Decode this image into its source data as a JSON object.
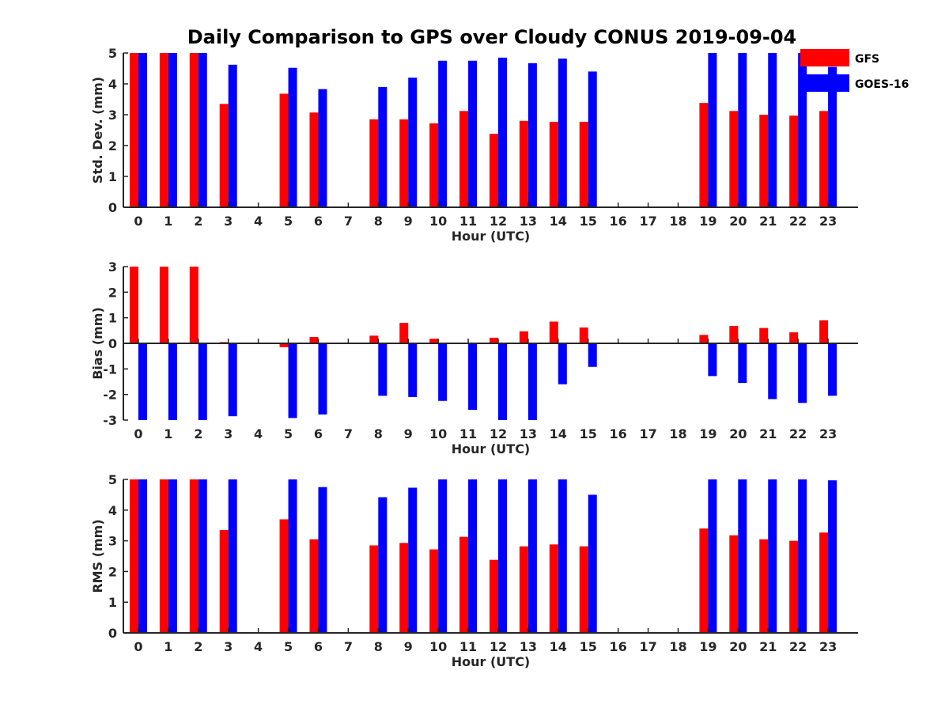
{
  "title": "Daily Comparison to GPS over Cloudy CONUS 2019-09-04",
  "legend": {
    "placement": "top-right",
    "items": [
      {
        "label": "GFS",
        "color": "#ff0000"
      },
      {
        "label": "GOES-16",
        "color": "#0000ff"
      }
    ]
  },
  "chart_data": [
    {
      "type": "bar",
      "xlabel": "Hour (UTC)",
      "ylabel": "Std. Dev. (mm)",
      "ylim": [
        0,
        5
      ],
      "yticks": [
        0,
        1,
        2,
        3,
        4,
        5
      ],
      "categories": [
        "0",
        "1",
        "2",
        "3",
        "4",
        "5",
        "6",
        "7",
        "8",
        "9",
        "10",
        "11",
        "12",
        "13",
        "14",
        "15",
        "16",
        "17",
        "18",
        "19",
        "20",
        "21",
        "22",
        "23"
      ],
      "series": [
        {
          "name": "GFS",
          "color": "#ff0000",
          "values": [
            5,
            5,
            5,
            3.35,
            null,
            3.68,
            3.07,
            null,
            2.85,
            2.85,
            2.72,
            3.12,
            2.38,
            2.8,
            2.77,
            2.77,
            null,
            null,
            null,
            3.38,
            3.12,
            3.0,
            2.97,
            3.12
          ]
        },
        {
          "name": "GOES-16",
          "color": "#0000ff",
          "values": [
            5,
            5,
            5,
            4.62,
            null,
            4.52,
            3.83,
            null,
            3.9,
            4.2,
            4.75,
            4.75,
            4.85,
            4.67,
            4.82,
            4.4,
            null,
            null,
            null,
            5,
            5,
            5,
            5,
            4.55
          ]
        }
      ]
    },
    {
      "type": "bar",
      "xlabel": "Hour (UTC)",
      "ylabel": "Bias (mm)",
      "ylim": [
        -3,
        3
      ],
      "yticks": [
        -3,
        -2,
        -1,
        0,
        1,
        2,
        3
      ],
      "categories": [
        "0",
        "1",
        "2",
        "3",
        "4",
        "5",
        "6",
        "7",
        "8",
        "9",
        "10",
        "11",
        "12",
        "13",
        "14",
        "15",
        "16",
        "17",
        "18",
        "19",
        "20",
        "21",
        "22",
        "23"
      ],
      "series": [
        {
          "name": "GFS",
          "color": "#ff0000",
          "values": [
            3,
            3,
            3,
            0.05,
            null,
            -0.15,
            0.25,
            null,
            0.3,
            0.8,
            0.18,
            null,
            0.22,
            0.47,
            0.85,
            0.62,
            null,
            null,
            null,
            0.33,
            0.68,
            0.6,
            0.43,
            0.9
          ]
        },
        {
          "name": "GOES-16",
          "color": "#0000ff",
          "values": [
            -3,
            -3,
            -3,
            -2.85,
            null,
            -2.92,
            -2.78,
            null,
            -2.05,
            -2.1,
            -2.25,
            -2.6,
            -3,
            -3,
            -1.6,
            -0.92,
            null,
            null,
            null,
            -1.28,
            -1.55,
            -2.18,
            -2.33,
            -2.05
          ]
        }
      ]
    },
    {
      "type": "bar",
      "xlabel": "Hour (UTC)",
      "ylabel": "RMS (mm)",
      "ylim": [
        0,
        5
      ],
      "yticks": [
        0,
        1,
        2,
        3,
        4,
        5
      ],
      "categories": [
        "0",
        "1",
        "2",
        "3",
        "4",
        "5",
        "6",
        "7",
        "8",
        "9",
        "10",
        "11",
        "12",
        "13",
        "14",
        "15",
        "16",
        "17",
        "18",
        "19",
        "20",
        "21",
        "22",
        "23"
      ],
      "series": [
        {
          "name": "GFS",
          "color": "#ff0000",
          "values": [
            5,
            5,
            5,
            3.35,
            null,
            3.7,
            3.05,
            null,
            2.85,
            2.93,
            2.72,
            3.13,
            2.38,
            2.82,
            2.88,
            2.82,
            null,
            null,
            null,
            3.4,
            3.18,
            3.05,
            3.0,
            3.27
          ]
        },
        {
          "name": "GOES-16",
          "color": "#0000ff",
          "values": [
            5,
            5,
            5,
            5,
            null,
            5,
            4.75,
            null,
            4.42,
            4.73,
            5,
            5,
            5,
            5,
            5,
            4.5,
            null,
            null,
            null,
            5,
            5,
            5,
            5,
            4.97
          ]
        }
      ]
    }
  ]
}
